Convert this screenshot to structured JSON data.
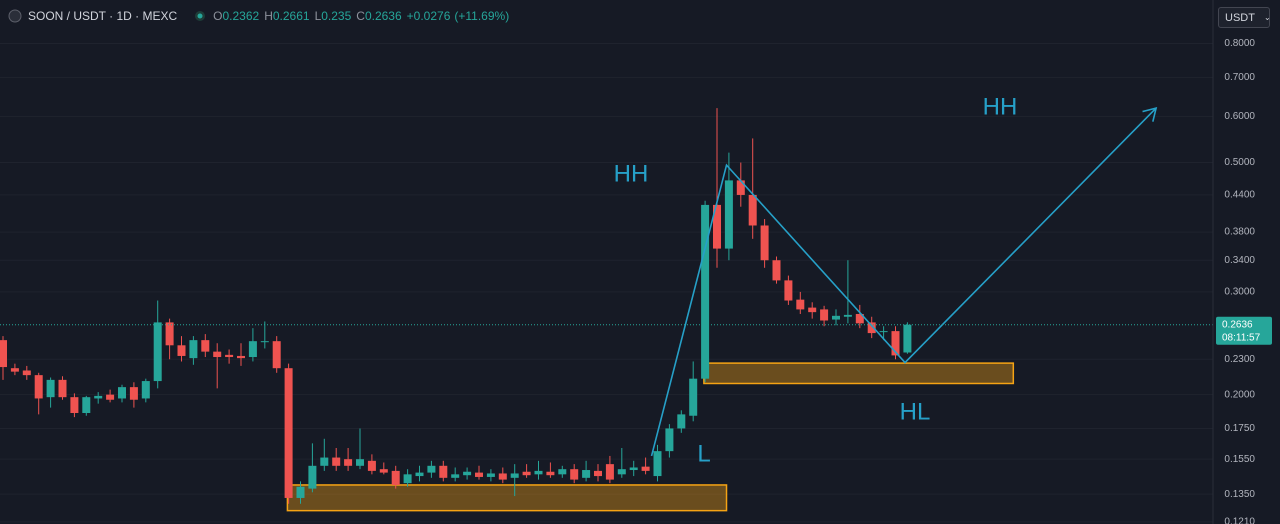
{
  "chart_data": {
    "type": "candlestick",
    "title": "SOON / USDT · 1D · MEXC",
    "ohlc_letters": [
      "O",
      "H",
      "L",
      "C"
    ],
    "change": {
      "value": 0.0276,
      "label": "+0.0276"
    },
    "change_pct": {
      "value": 11.69,
      "label": "(+11.69%)"
    },
    "countdown": "08:11:57",
    "currency": "USDT",
    "log_scale": true,
    "grid": true,
    "up_color": "#26a69a",
    "down_color": "#ef5350",
    "ylim": [
      0.12,
      0.95
    ],
    "yticks": [
      {
        "value": 0.8,
        "label": "0.8000"
      },
      {
        "value": 0.7,
        "label": "0.7000"
      },
      {
        "value": 0.6,
        "label": "0.6000"
      },
      {
        "value": 0.5,
        "label": "0.5000"
      },
      {
        "value": 0.44,
        "label": "0.4400"
      },
      {
        "value": 0.38,
        "label": "0.3800"
      },
      {
        "value": 0.34,
        "label": "0.3400"
      },
      {
        "value": 0.3,
        "label": "0.3000"
      },
      {
        "value": 0.23,
        "label": "0.2300"
      },
      {
        "value": 0.2,
        "label": "0.2000"
      },
      {
        "value": 0.175,
        "label": "0.1750"
      },
      {
        "value": 0.155,
        "label": "0.1550"
      },
      {
        "value": 0.135,
        "label": "0.1350"
      },
      {
        "value": 0.121,
        "label": "0.1210"
      }
    ],
    "open": [
      0.248,
      0.222,
      0.22,
      0.216,
      0.198,
      0.212,
      0.198,
      0.186,
      0.197,
      0.2,
      0.197,
      0.206,
      0.197,
      0.211,
      0.266,
      0.243,
      0.231,
      0.248,
      0.237,
      0.234,
      0.233,
      0.232,
      0.246,
      0.247,
      0.222,
      0.133,
      0.138,
      0.151,
      0.156,
      0.155,
      0.151,
      0.154,
      0.149,
      0.148,
      0.141,
      0.145,
      0.147,
      0.151,
      0.144,
      0.1455,
      0.147,
      0.1445,
      0.1465,
      0.144,
      0.1475,
      0.146,
      0.1475,
      0.146,
      0.149,
      0.144,
      0.148,
      0.152,
      0.146,
      0.1485,
      0.1505,
      0.145,
      0.16,
      0.175,
      0.184,
      0.213,
      0.423,
      0.356,
      0.466,
      0.44,
      0.39,
      0.34,
      0.314,
      0.291,
      0.282,
      0.28,
      0.269,
      0.272,
      0.275,
      0.266,
      0.256,
      0.257,
      0.2362
    ],
    "high": [
      0.252,
      0.226,
      0.224,
      0.218,
      0.214,
      0.215,
      0.201,
      0.199,
      0.202,
      0.204,
      0.208,
      0.21,
      0.213,
      0.29,
      0.27,
      0.252,
      0.252,
      0.254,
      0.245,
      0.239,
      0.245,
      0.26,
      0.267,
      0.252,
      0.226,
      0.142,
      0.165,
      0.168,
      0.162,
      0.162,
      0.175,
      0.158,
      0.153,
      0.151,
      0.149,
      0.151,
      0.154,
      0.154,
      0.15,
      0.15,
      0.151,
      0.149,
      0.15,
      0.152,
      0.152,
      0.154,
      0.153,
      0.151,
      0.152,
      0.154,
      0.152,
      0.157,
      0.162,
      0.154,
      0.156,
      0.164,
      0.178,
      0.188,
      0.228,
      0.43,
      0.62,
      0.52,
      0.5,
      0.55,
      0.4,
      0.345,
      0.32,
      0.3,
      0.288,
      0.284,
      0.28,
      0.34,
      0.285,
      0.272,
      0.262,
      0.262,
      0.2661
    ],
    "low": [
      0.212,
      0.216,
      0.212,
      0.185,
      0.19,
      0.196,
      0.183,
      0.184,
      0.193,
      0.194,
      0.194,
      0.19,
      0.194,
      0.205,
      0.23,
      0.228,
      0.225,
      0.232,
      0.205,
      0.226,
      0.224,
      0.228,
      0.24,
      0.218,
      0.13,
      0.13,
      0.136,
      0.148,
      0.148,
      0.148,
      0.149,
      0.146,
      0.146,
      0.138,
      0.139,
      0.142,
      0.144,
      0.142,
      0.142,
      0.143,
      0.143,
      0.142,
      0.141,
      0.134,
      0.144,
      0.143,
      0.144,
      0.144,
      0.141,
      0.142,
      0.142,
      0.141,
      0.144,
      0.145,
      0.146,
      0.142,
      0.156,
      0.172,
      0.18,
      0.21,
      0.33,
      0.34,
      0.42,
      0.37,
      0.33,
      0.31,
      0.285,
      0.275,
      0.27,
      0.262,
      0.263,
      0.265,
      0.26,
      0.25,
      0.248,
      0.23,
      0.235
    ],
    "close": [
      0.223,
      0.219,
      0.216,
      0.197,
      0.212,
      0.198,
      0.186,
      0.198,
      0.199,
      0.196,
      0.206,
      0.196,
      0.211,
      0.266,
      0.243,
      0.233,
      0.248,
      0.237,
      0.232,
      0.232,
      0.231,
      0.247,
      0.247,
      0.222,
      0.133,
      0.139,
      0.151,
      0.156,
      0.151,
      0.151,
      0.155,
      0.148,
      0.147,
      0.14,
      0.146,
      0.147,
      0.151,
      0.144,
      0.146,
      0.1475,
      0.1445,
      0.1465,
      0.143,
      0.1465,
      0.1455,
      0.148,
      0.1455,
      0.149,
      0.143,
      0.1485,
      0.145,
      0.143,
      0.149,
      0.15,
      0.148,
      0.16,
      0.175,
      0.185,
      0.213,
      0.423,
      0.356,
      0.466,
      0.44,
      0.39,
      0.34,
      0.314,
      0.29,
      0.28,
      0.277,
      0.268,
      0.273,
      0.274,
      0.265,
      0.255,
      0.257,
      0.2335,
      0.2636
    ],
    "zones": [
      {
        "start": 23.9,
        "end": 60.8,
        "low": 0.1265,
        "high": 0.14
      },
      {
        "start": 58.9,
        "end": 84.9,
        "low": 0.209,
        "high": 0.2265
      }
    ],
    "trendline": {
      "x": [
        54.5,
        60.8,
        75.8,
        96.9
      ],
      "y": [
        0.157,
        0.495,
        0.227,
        0.62
      ]
    },
    "annotations": [
      "HH",
      "HH",
      "L",
      "HL"
    ]
  }
}
